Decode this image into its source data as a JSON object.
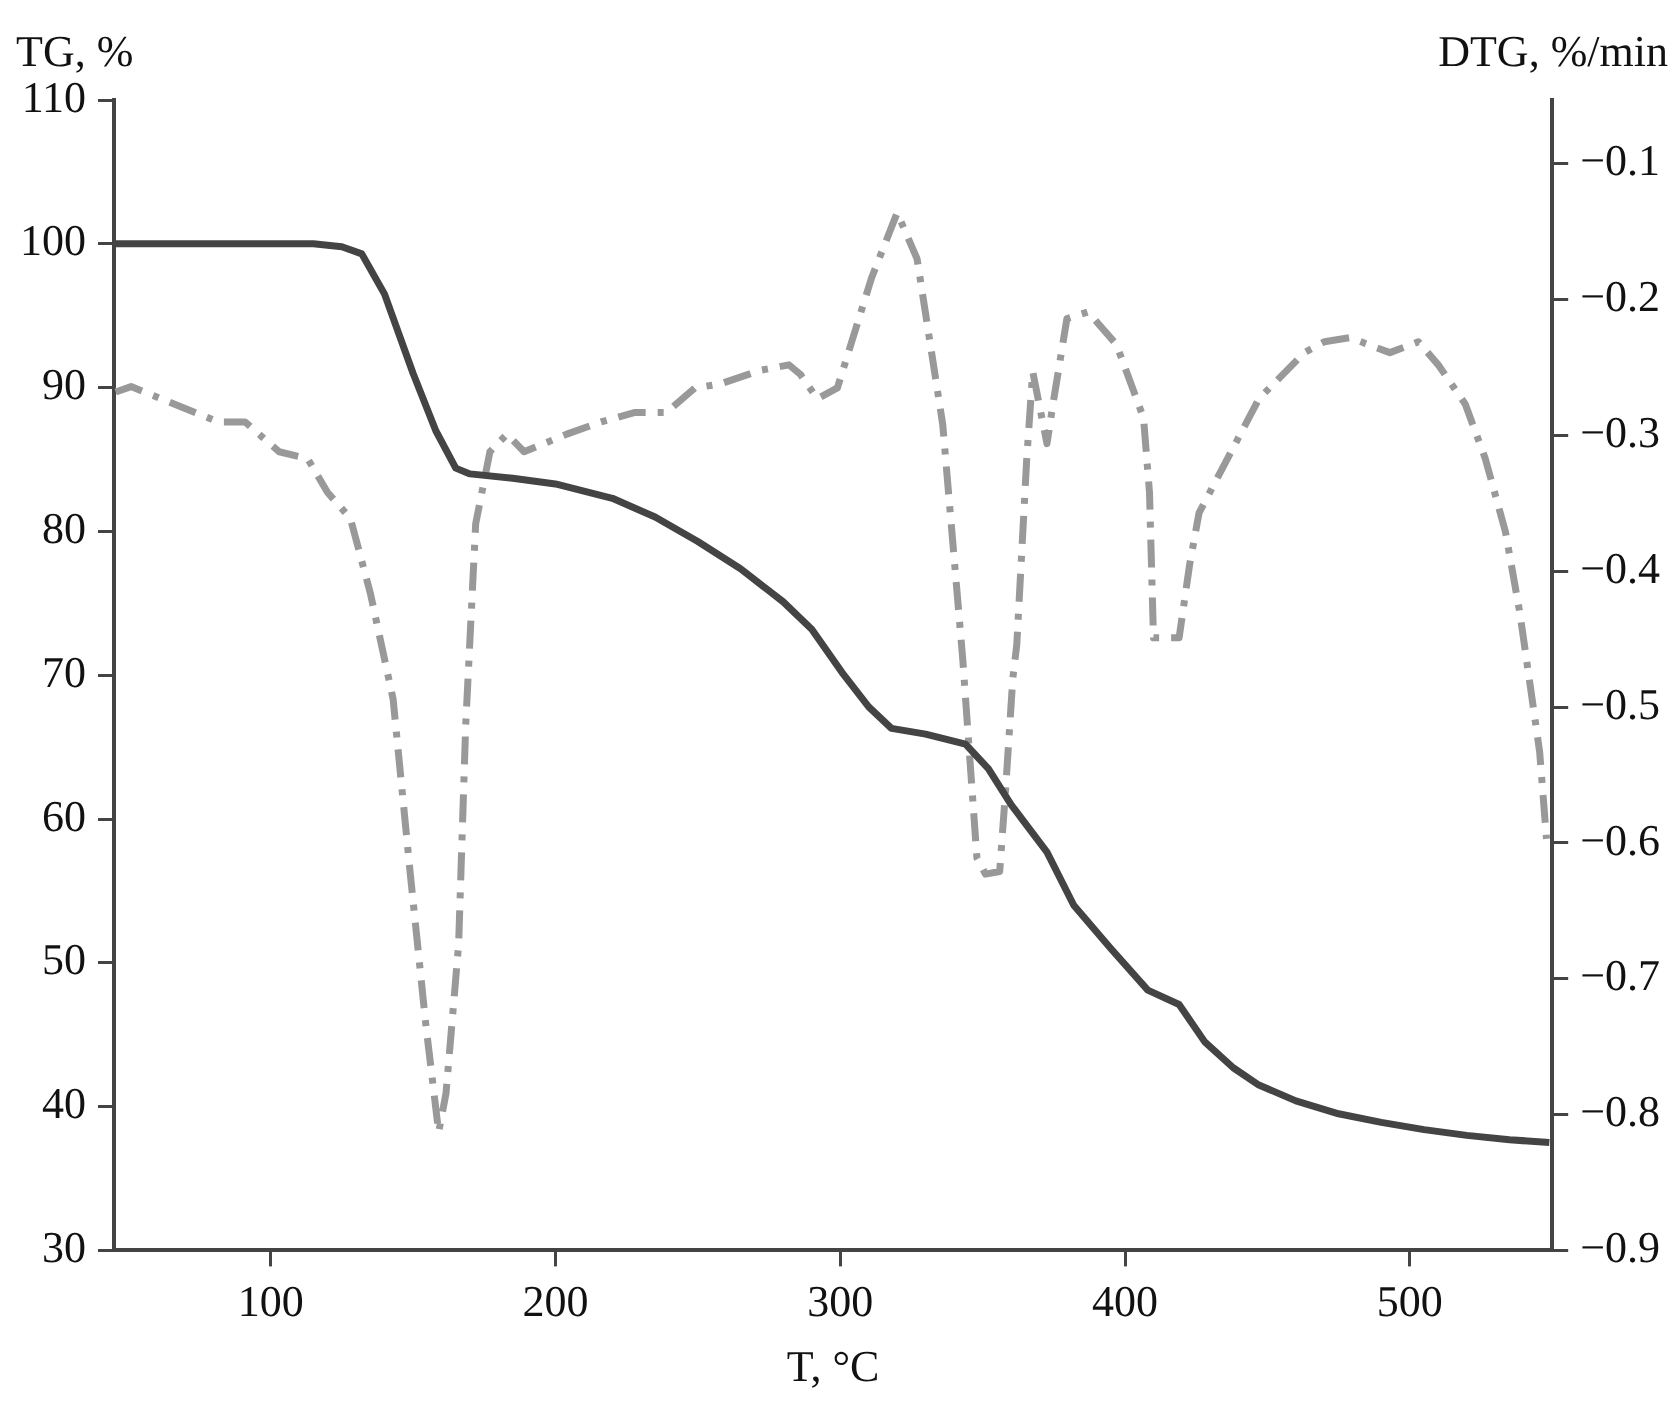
{
  "chart_data": {
    "type": "line",
    "xlabel": "T, °C",
    "ylabel": "TG, %",
    "y2label": "DTG, %/min",
    "xlim": [
      45,
      550
    ],
    "xticks": [
      100,
      200,
      300,
      400,
      500
    ],
    "ylim": [
      30,
      110
    ],
    "yticks": [
      30,
      40,
      50,
      60,
      70,
      80,
      90,
      100,
      110
    ],
    "y2lim": [
      -0.9,
      -0.053
    ],
    "y2ticks": [
      {
        "value": -0.9,
        "label": "−0.9"
      },
      {
        "value": -0.8,
        "label": "−0.8"
      },
      {
        "value": -0.7,
        "label": "−0.7"
      },
      {
        "value": -0.6,
        "label": "−0.6"
      },
      {
        "value": -0.5,
        "label": "−0.5"
      },
      {
        "value": -0.4,
        "label": "−0.4"
      },
      {
        "value": -0.3,
        "label": "−0.3"
      },
      {
        "value": -0.2,
        "label": "−0.2"
      },
      {
        "value": -0.1,
        "label": "−0.1"
      }
    ],
    "grid": false,
    "legend": false,
    "marker": "none",
    "series": [
      {
        "color": "#444444",
        "line_style": "solid",
        "x": [
          45,
          60,
          80,
          100,
          115,
          125,
          132,
          140,
          150,
          158,
          165,
          170,
          185,
          200,
          220,
          235,
          250,
          265,
          280,
          290,
          300.6,
          310,
          318,
          330,
          344,
          352,
          360,
          372.6,
          382,
          395,
          408,
          419,
          428,
          438,
          447,
          460,
          475,
          490,
          505,
          520,
          535,
          549
        ],
        "values": [
          100,
          100,
          100,
          100,
          100,
          99.8,
          99.3,
          96.5,
          91,
          87,
          84.4,
          84,
          83.7,
          83.3,
          82.3,
          81,
          79.3,
          77.4,
          75.1,
          73.2,
          70.2,
          67.8,
          66.3,
          65.9,
          65.2,
          63.5,
          61,
          57.7,
          54,
          51,
          48.1,
          47.1,
          44.5,
          42.7,
          41.5,
          40.4,
          39.5,
          38.9,
          38.4,
          38,
          37.7,
          37.5
        ]
      },
      {
        "color": "#999999",
        "axis": "y2",
        "line_style": "dashed",
        "x": [
          45.6,
          51,
          81.6,
          91,
          103,
          113,
          120,
          128,
          135,
          143,
          149,
          154.5,
          159,
          161.6,
          166,
          168.5,
          172,
          177,
          183,
          189,
          204,
          216,
          228,
          239,
          249,
          258,
          272,
          282,
          286,
          292,
          299,
          311,
          320,
          327,
          336,
          343,
          348,
          351,
          356,
          358,
          360.6,
          362,
          365.5,
          367.6,
          372.6,
          374.7,
          379.6,
          387,
          397,
          406.5,
          408.6,
          410,
          413.6,
          419,
          422.7,
          426,
          436,
          447,
          463,
          470,
          479,
          493,
          503,
          510,
          519.5,
          526.5,
          533.6,
          538.6,
          545.6,
          548
        ],
        "values": [
          -0.268,
          -0.264,
          -0.29,
          -0.29,
          -0.312,
          -0.317,
          -0.342,
          -0.361,
          -0.416,
          -0.494,
          -0.622,
          -0.734,
          -0.813,
          -0.784,
          -0.675,
          -0.513,
          -0.365,
          -0.312,
          -0.299,
          -0.312,
          -0.299,
          -0.29,
          -0.283,
          -0.283,
          -0.265,
          -0.262,
          -0.252,
          -0.248,
          -0.255,
          -0.273,
          -0.265,
          -0.184,
          -0.136,
          -0.17,
          -0.292,
          -0.464,
          -0.611,
          -0.623,
          -0.621,
          -0.563,
          -0.479,
          -0.454,
          -0.317,
          -0.253,
          -0.306,
          -0.277,
          -0.214,
          -0.209,
          -0.233,
          -0.287,
          -0.342,
          -0.449,
          -0.449,
          -0.449,
          -0.395,
          -0.357,
          -0.317,
          -0.273,
          -0.239,
          -0.231,
          -0.228,
          -0.239,
          -0.231,
          -0.248,
          -0.277,
          -0.317,
          -0.371,
          -0.43,
          -0.533,
          -0.597
        ]
      }
    ]
  }
}
